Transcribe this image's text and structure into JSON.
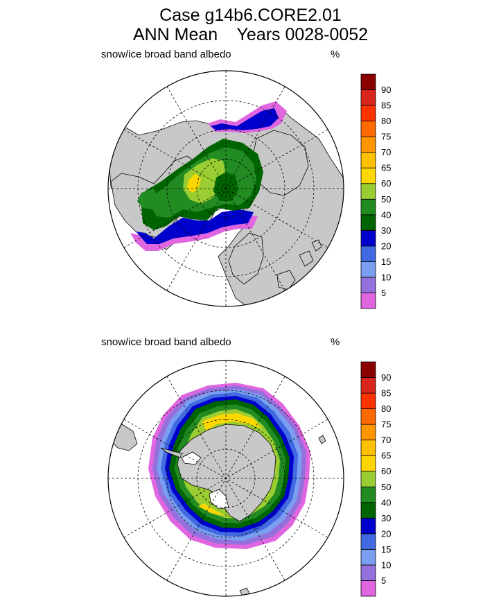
{
  "header": {
    "title_line1": "Case g14b6.CORE2.01",
    "title_line2": "ANN Mean    Years 0028-0052"
  },
  "panels": [
    {
      "name": "north",
      "field_label": "snow/ice broad band albedo",
      "units": "%"
    },
    {
      "name": "south",
      "field_label": "snow/ice broad band albedo",
      "units": "%"
    }
  ],
  "colorbar": {
    "levels": [
      "5",
      "10",
      "15",
      "20",
      "30",
      "40",
      "50",
      "60",
      "65",
      "70",
      "75",
      "80",
      "85",
      "90"
    ],
    "colors": [
      "#e066e0",
      "#9370db",
      "#7b9ff0",
      "#4169e1",
      "#0000cd",
      "#006400",
      "#228b22",
      "#9acd32",
      "#ffd700",
      "#ffc000",
      "#ff9500",
      "#ff6a00",
      "#ff3300",
      "#d9261c",
      "#8b0000"
    ]
  },
  "map_colors": {
    "land": "#c8c8c8",
    "ocean": "#ffffff"
  }
}
